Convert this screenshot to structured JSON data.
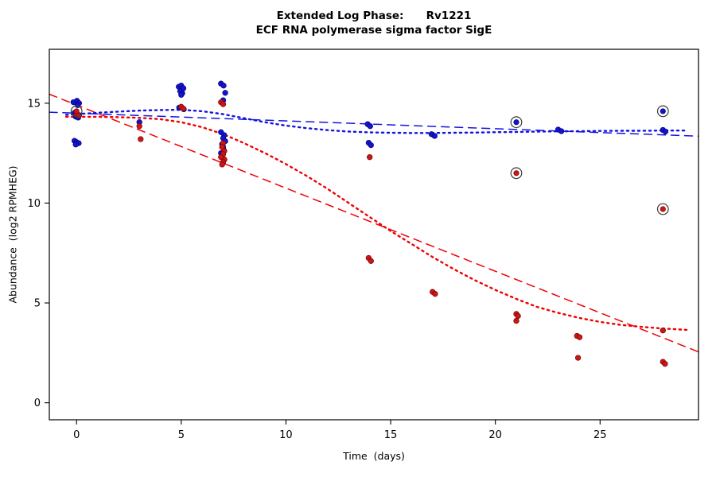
{
  "header": {
    "title": "Extended Log Phase:      Rv1221",
    "subtitle": "ECF RNA polymerase sigma factor SigE"
  },
  "chart_data": {
    "type": "scatter",
    "title": "Extended Log Phase: Rv1221",
    "subtitle": "ECF RNA polymerase sigma factor SigE",
    "xlabel": "Time  (days)",
    "ylabel": "Abundance  (log2 RPMHEG)",
    "xlim": [
      -1.3,
      29.7
    ],
    "ylim": [
      -0.85,
      17.7
    ],
    "x_ticks": [
      0,
      5,
      10,
      15,
      20,
      25
    ],
    "y_ticks": [
      0,
      5,
      10,
      15
    ],
    "grid": false,
    "legend": "none",
    "colors": {
      "blue": "#1515c8",
      "red": "#cc1616",
      "blue_stroke": "#00008b",
      "red_stroke": "#7a0000",
      "blue_line": "#1414e0",
      "red_line": "#f00000",
      "ring": "#3c3c3c",
      "axis": "#000000"
    },
    "series": [
      {
        "name": "blue-points",
        "color_key": "blue",
        "points": [
          [
            -0.15,
            15.05
          ],
          [
            0.02,
            15.12
          ],
          [
            0.12,
            15.0
          ],
          [
            0.05,
            14.9
          ],
          [
            -0.1,
            14.52
          ],
          [
            0.0,
            14.45
          ],
          [
            0.12,
            14.4
          ],
          [
            -0.04,
            14.33
          ],
          [
            0.08,
            14.28
          ],
          [
            -0.1,
            13.12
          ],
          [
            0.0,
            13.05
          ],
          [
            0.1,
            13.0
          ],
          [
            -0.04,
            12.93
          ],
          [
            3.0,
            14.05
          ],
          [
            4.88,
            15.82
          ],
          [
            5.0,
            15.88
          ],
          [
            5.1,
            15.75
          ],
          [
            4.95,
            15.6
          ],
          [
            5.05,
            15.5
          ],
          [
            5.0,
            15.42
          ],
          [
            4.9,
            14.78
          ],
          [
            5.12,
            14.7
          ],
          [
            6.9,
            15.98
          ],
          [
            7.02,
            15.88
          ],
          [
            7.1,
            15.52
          ],
          [
            7.0,
            15.15
          ],
          [
            6.9,
            13.55
          ],
          [
            7.05,
            13.4
          ],
          [
            7.0,
            13.25
          ],
          [
            7.1,
            13.1
          ],
          [
            6.95,
            12.95
          ],
          [
            7.0,
            12.8
          ],
          [
            7.05,
            12.62
          ],
          [
            6.9,
            12.5
          ],
          [
            13.9,
            13.95
          ],
          [
            14.02,
            13.85
          ],
          [
            13.95,
            13.02
          ],
          [
            14.06,
            12.9
          ],
          [
            16.95,
            13.45
          ],
          [
            17.1,
            13.36
          ],
          [
            23.0,
            13.68
          ],
          [
            23.15,
            13.6
          ],
          [
            28.0,
            13.66
          ],
          [
            28.12,
            13.58
          ]
        ]
      },
      {
        "name": "red-points",
        "color_key": "red",
        "points": [
          [
            0.0,
            14.45
          ],
          [
            0.1,
            14.38
          ],
          [
            3.0,
            13.85
          ],
          [
            3.06,
            13.2
          ],
          [
            5.0,
            14.82
          ],
          [
            5.1,
            14.73
          ],
          [
            6.9,
            15.05
          ],
          [
            7.0,
            14.95
          ],
          [
            7.0,
            13.0
          ],
          [
            6.95,
            12.8
          ],
          [
            7.05,
            12.6
          ],
          [
            7.0,
            12.45
          ],
          [
            6.9,
            12.3
          ],
          [
            7.06,
            12.18
          ],
          [
            7.0,
            12.05
          ],
          [
            6.95,
            11.93
          ],
          [
            14.0,
            12.3
          ],
          [
            13.95,
            7.25
          ],
          [
            14.06,
            7.1
          ],
          [
            17.0,
            5.55
          ],
          [
            17.12,
            5.45
          ],
          [
            21.0,
            4.45
          ],
          [
            21.08,
            4.35
          ],
          [
            21.0,
            4.1
          ],
          [
            23.9,
            3.35
          ],
          [
            24.02,
            3.28
          ],
          [
            23.95,
            2.25
          ],
          [
            28.0,
            3.62
          ],
          [
            28.0,
            2.05
          ],
          [
            28.1,
            1.95
          ]
        ]
      }
    ],
    "circled_points": [
      {
        "x": 0,
        "y": 14.6,
        "color_key": "red"
      },
      {
        "x": 21,
        "y": 14.05,
        "color_key": "blue"
      },
      {
        "x": 21,
        "y": 11.5,
        "color_key": "red"
      },
      {
        "x": 28,
        "y": 14.6,
        "color_key": "blue"
      },
      {
        "x": 28,
        "y": 9.7,
        "color_key": "red"
      }
    ],
    "lines": [
      {
        "name": "blue-linear-fit",
        "color_key": "blue_line",
        "style": "dashed",
        "points": [
          [
            -1.3,
            14.55
          ],
          [
            29.7,
            13.35
          ]
        ]
      },
      {
        "name": "red-linear-fit",
        "color_key": "red_line",
        "style": "dashed",
        "points": [
          [
            -1.3,
            15.45
          ],
          [
            29.7,
            2.55
          ]
        ]
      },
      {
        "name": "blue-loess-fit",
        "color_key": "blue_line",
        "style": "dotted",
        "points": [
          [
            -0.5,
            14.42
          ],
          [
            0,
            14.45
          ],
          [
            1,
            14.52
          ],
          [
            2,
            14.58
          ],
          [
            3,
            14.63
          ],
          [
            4,
            14.66
          ],
          [
            5,
            14.67
          ],
          [
            6,
            14.6
          ],
          [
            7,
            14.45
          ],
          [
            8,
            14.25
          ],
          [
            9,
            14.05
          ],
          [
            10,
            13.88
          ],
          [
            11,
            13.75
          ],
          [
            12,
            13.65
          ],
          [
            13,
            13.58
          ],
          [
            14,
            13.54
          ],
          [
            15,
            13.52
          ],
          [
            16,
            13.51
          ],
          [
            17,
            13.51
          ],
          [
            18,
            13.52
          ],
          [
            19,
            13.53
          ],
          [
            20,
            13.55
          ],
          [
            21,
            13.56
          ],
          [
            22,
            13.58
          ],
          [
            23,
            13.59
          ],
          [
            24,
            13.6
          ],
          [
            25,
            13.61
          ],
          [
            26,
            13.62
          ],
          [
            27,
            13.62
          ],
          [
            28,
            13.63
          ],
          [
            29.2,
            13.63
          ]
        ]
      },
      {
        "name": "red-loess-fit",
        "color_key": "red_line",
        "style": "dotted",
        "points": [
          [
            -0.5,
            14.32
          ],
          [
            0,
            14.32
          ],
          [
            1,
            14.32
          ],
          [
            2,
            14.3
          ],
          [
            3,
            14.27
          ],
          [
            4,
            14.2
          ],
          [
            5,
            14.05
          ],
          [
            6,
            13.8
          ],
          [
            7,
            13.45
          ],
          [
            8,
            13.0
          ],
          [
            9,
            12.5
          ],
          [
            10,
            11.95
          ],
          [
            11,
            11.35
          ],
          [
            12,
            10.7
          ],
          [
            13,
            10.0
          ],
          [
            14,
            9.3
          ],
          [
            15,
            8.6
          ],
          [
            16,
            7.95
          ],
          [
            17,
            7.3
          ],
          [
            18,
            6.7
          ],
          [
            19,
            6.15
          ],
          [
            20,
            5.65
          ],
          [
            21,
            5.2
          ],
          [
            22,
            4.8
          ],
          [
            23,
            4.5
          ],
          [
            24,
            4.25
          ],
          [
            25,
            4.05
          ],
          [
            26,
            3.9
          ],
          [
            27,
            3.8
          ],
          [
            28,
            3.72
          ],
          [
            29.2,
            3.65
          ]
        ]
      }
    ]
  }
}
